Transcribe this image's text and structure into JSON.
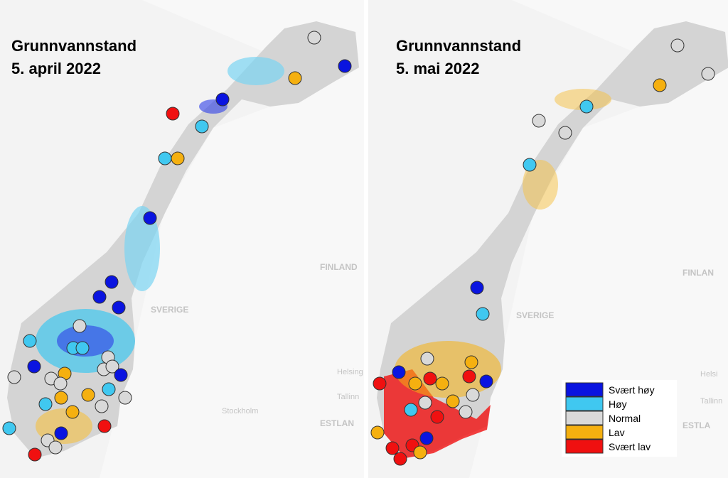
{
  "panels": [
    {
      "title": "Grunnvannstand",
      "date": "5. april 2022",
      "places": [
        "SVERIGE",
        "FINLAND",
        "Stockholm",
        "Helsing",
        "Tallinn",
        "ESTLAN"
      ]
    },
    {
      "title": "Grunnvannstand",
      "date": "5. mai 2022",
      "places": [
        "SVERIGE",
        "FINLAN",
        "Helsi",
        "Tallinn",
        "ESTLA"
      ]
    }
  ],
  "legend": [
    "Svært høy",
    "Høy",
    "Normal",
    "Lav",
    "Svært lav"
  ]
}
